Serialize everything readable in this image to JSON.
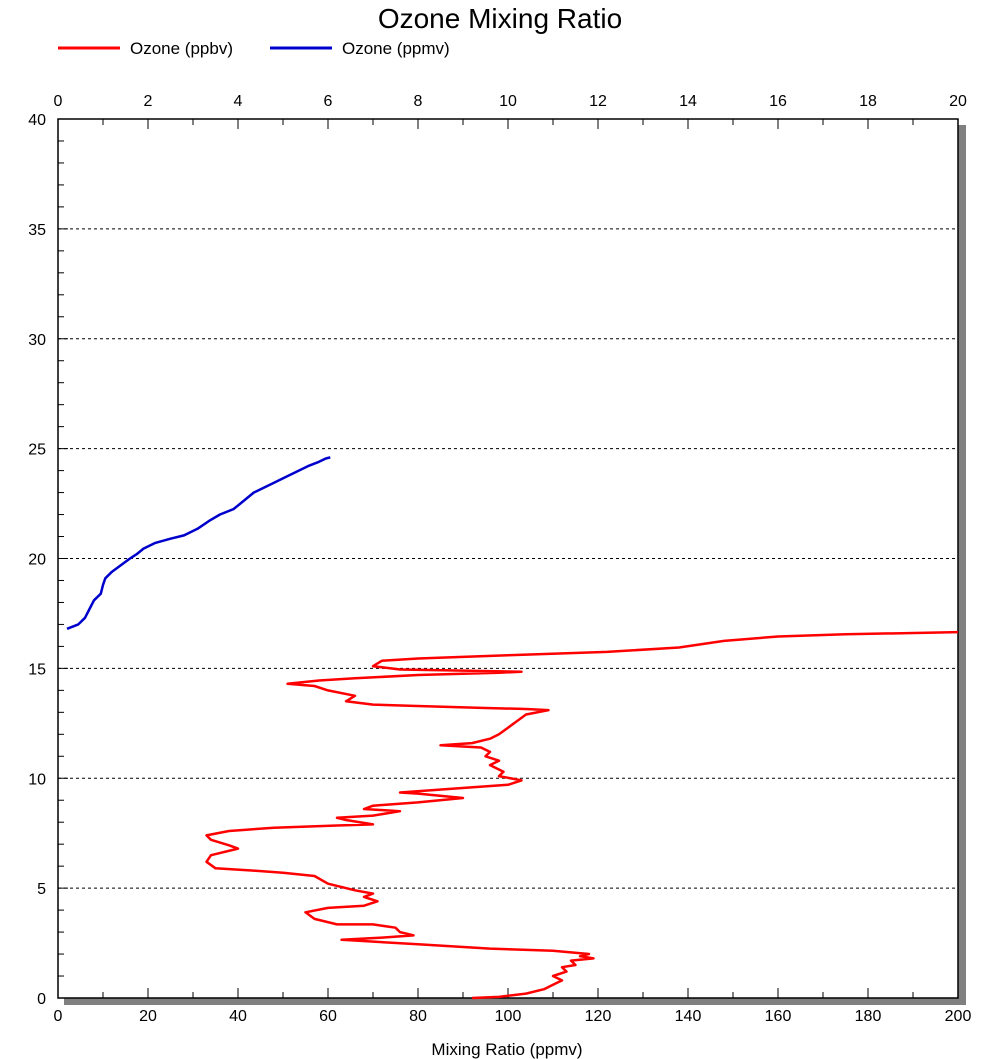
{
  "chart_data": {
    "type": "line",
    "title": "Ozone Mixing Ratio",
    "xlabel": "Mixing Ratio (ppmv)",
    "ylabel": "",
    "grid": {
      "horizontal_dashed": true,
      "vertical": false
    },
    "legend_placement": "top-left",
    "axes": {
      "x_bottom": {
        "range": [
          0,
          200
        ],
        "ticks": [
          "0",
          "20",
          "40",
          "60",
          "80",
          "100",
          "120",
          "140",
          "160",
          "180",
          "200"
        ]
      },
      "x_top": {
        "range": [
          0,
          20
        ],
        "ticks": [
          "0",
          "2",
          "4",
          "6",
          "8",
          "10",
          "12",
          "14",
          "16",
          "18",
          "20"
        ]
      },
      "y_left": {
        "range": [
          0,
          40
        ],
        "ticks": [
          "0",
          "5",
          "10",
          "15",
          "20",
          "25",
          "30",
          "35",
          "40"
        ]
      }
    },
    "series": [
      {
        "name": "Ozone (ppbv)",
        "color": "#ff0000",
        "x_axis": "bottom",
        "points": [
          [
            92,
            0
          ],
          [
            98,
            0.05
          ],
          [
            104,
            0.2
          ],
          [
            108,
            0.4
          ],
          [
            110,
            0.6
          ],
          [
            112,
            0.8
          ],
          [
            110,
            1.0
          ],
          [
            113,
            1.2
          ],
          [
            112,
            1.4
          ],
          [
            115,
            1.5
          ],
          [
            114,
            1.7
          ],
          [
            119,
            1.8
          ],
          [
            116,
            1.9
          ],
          [
            118,
            2.0
          ],
          [
            110,
            2.15
          ],
          [
            96,
            2.25
          ],
          [
            80,
            2.45
          ],
          [
            63,
            2.65
          ],
          [
            72,
            2.75
          ],
          [
            79,
            2.85
          ],
          [
            76,
            3.0
          ],
          [
            75,
            3.2
          ],
          [
            70,
            3.35
          ],
          [
            62,
            3.35
          ],
          [
            57,
            3.6
          ],
          [
            55,
            3.9
          ],
          [
            60,
            4.1
          ],
          [
            68,
            4.2
          ],
          [
            71,
            4.4
          ],
          [
            68,
            4.6
          ],
          [
            70,
            4.75
          ],
          [
            66,
            4.9
          ],
          [
            60,
            5.2
          ],
          [
            57,
            5.55
          ],
          [
            50,
            5.7
          ],
          [
            43,
            5.8
          ],
          [
            35,
            5.9
          ],
          [
            33,
            6.2
          ],
          [
            34,
            6.5
          ],
          [
            40,
            6.8
          ],
          [
            38,
            6.95
          ],
          [
            34,
            7.2
          ],
          [
            33,
            7.4
          ],
          [
            38,
            7.6
          ],
          [
            48,
            7.75
          ],
          [
            62,
            7.85
          ],
          [
            70,
            7.9
          ],
          [
            64,
            8.1
          ],
          [
            62,
            8.2
          ],
          [
            70,
            8.3
          ],
          [
            76,
            8.5
          ],
          [
            68,
            8.6
          ],
          [
            70,
            8.75
          ],
          [
            80,
            8.9
          ],
          [
            90,
            9.1
          ],
          [
            80,
            9.3
          ],
          [
            76,
            9.35
          ],
          [
            86,
            9.5
          ],
          [
            100,
            9.7
          ],
          [
            103,
            9.9
          ],
          [
            98,
            10.1
          ],
          [
            99,
            10.3
          ],
          [
            96,
            10.6
          ],
          [
            98,
            10.8
          ],
          [
            95,
            11.0
          ],
          [
            96,
            11.2
          ],
          [
            94,
            11.4
          ],
          [
            85,
            11.5
          ],
          [
            92,
            11.6
          ],
          [
            96,
            11.8
          ],
          [
            98,
            12.0
          ],
          [
            100,
            12.3
          ],
          [
            102,
            12.6
          ],
          [
            104,
            12.9
          ],
          [
            109,
            13.1
          ],
          [
            104,
            13.15
          ],
          [
            94,
            13.2
          ],
          [
            78,
            13.3
          ],
          [
            70,
            13.35
          ],
          [
            64,
            13.5
          ],
          [
            66,
            13.75
          ],
          [
            60,
            14.0
          ],
          [
            57,
            14.2
          ],
          [
            51,
            14.3
          ],
          [
            58,
            14.45
          ],
          [
            66,
            14.55
          ],
          [
            80,
            14.7
          ],
          [
            98,
            14.8
          ],
          [
            103,
            14.85
          ],
          [
            90,
            14.9
          ],
          [
            76,
            14.95
          ],
          [
            70,
            15.1
          ],
          [
            72,
            15.35
          ],
          [
            80,
            15.45
          ],
          [
            100,
            15.6
          ],
          [
            122,
            15.75
          ],
          [
            138,
            15.95
          ],
          [
            148,
            16.25
          ],
          [
            160,
            16.45
          ],
          [
            175,
            16.55
          ],
          [
            200,
            16.65
          ]
        ]
      },
      {
        "name": "Ozone (ppmv)",
        "color": "#0000cc",
        "x_axis": "top",
        "points": [
          [
            0.2,
            16.8
          ],
          [
            0.45,
            17.0
          ],
          [
            0.6,
            17.3
          ],
          [
            0.7,
            17.7
          ],
          [
            0.8,
            18.1
          ],
          [
            0.95,
            18.4
          ],
          [
            1.0,
            18.8
          ],
          [
            1.05,
            19.1
          ],
          [
            1.2,
            19.4
          ],
          [
            1.4,
            19.7
          ],
          [
            1.6,
            20.0
          ],
          [
            1.75,
            20.2
          ],
          [
            1.9,
            20.45
          ],
          [
            2.15,
            20.7
          ],
          [
            2.5,
            20.9
          ],
          [
            2.8,
            21.05
          ],
          [
            3.1,
            21.35
          ],
          [
            3.35,
            21.7
          ],
          [
            3.6,
            22.0
          ],
          [
            3.9,
            22.25
          ],
          [
            4.05,
            22.5
          ],
          [
            4.2,
            22.75
          ],
          [
            4.35,
            23.0
          ],
          [
            4.6,
            23.25
          ],
          [
            4.85,
            23.5
          ],
          [
            5.1,
            23.75
          ],
          [
            5.3,
            23.95
          ],
          [
            5.55,
            24.2
          ],
          [
            5.8,
            24.4
          ],
          [
            5.95,
            24.55
          ],
          [
            6.05,
            24.6
          ]
        ]
      }
    ]
  }
}
